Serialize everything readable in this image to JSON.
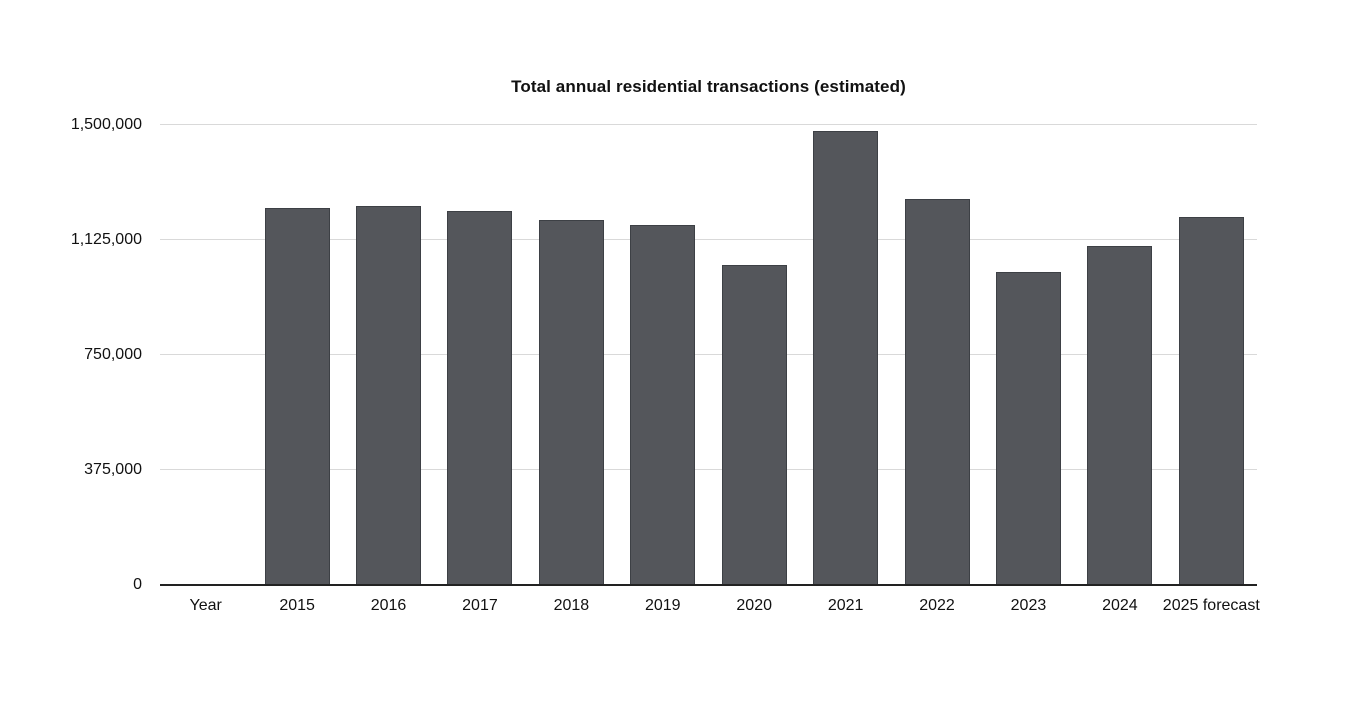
{
  "chart": {
    "colors": {
      "background": "#ffffff",
      "bar": "#54565b",
      "bar_border": "#3d4045",
      "gridline": "#d9d9d9",
      "axis": "#222222",
      "text": "#111111"
    }
  },
  "chart_data": {
    "type": "bar",
    "title": "Total annual residential transactions (estimated)",
    "categories": [
      "Year",
      "2015",
      "2016",
      "2017",
      "2018",
      "2019",
      "2020",
      "2021",
      "2022",
      "2023",
      "2024",
      "2025 forecast"
    ],
    "values": [
      null,
      1230000,
      1235000,
      1220000,
      1190000,
      1175000,
      1045000,
      1480000,
      1260000,
      1020000,
      1105000,
      1200000
    ],
    "xlabel": "",
    "ylabel": "",
    "ylim": [
      0,
      1500000
    ],
    "yticks": [
      0,
      375000,
      750000,
      1125000,
      1500000
    ],
    "ytick_labels": [
      "0",
      "375,000",
      "750,000",
      "1,125,000",
      "1,500,000"
    ],
    "grid": true,
    "legend": false
  }
}
